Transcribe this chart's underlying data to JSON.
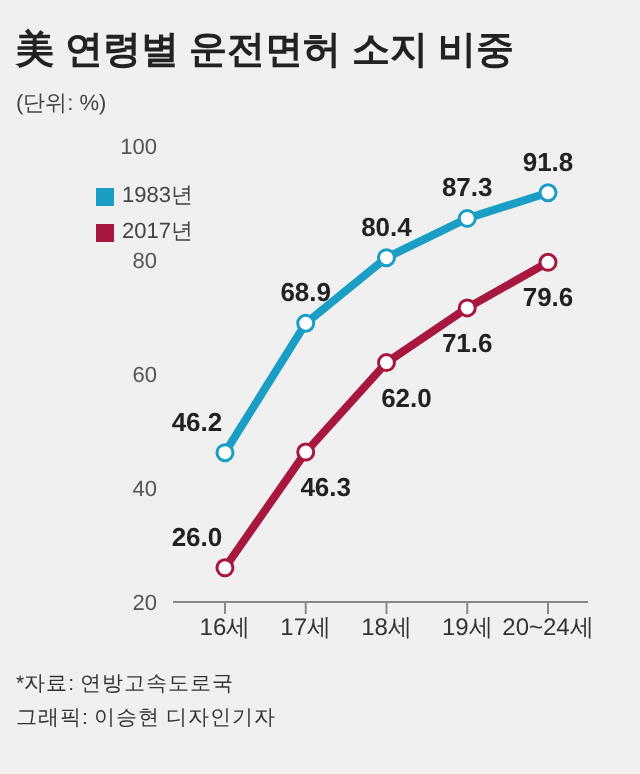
{
  "chart_data": {
    "type": "line",
    "title": "美 연령별 운전면허 소지 비중",
    "subtitle": "(단위: %)",
    "categories": [
      "16세",
      "17세",
      "18세",
      "19세",
      "20~24세"
    ],
    "series": [
      {
        "name": "1983년",
        "color": "#1b9ec6",
        "values": [
          46.2,
          68.9,
          80.4,
          87.3,
          91.8
        ],
        "value_labels": [
          "46.2",
          "68.9",
          "80.4",
          "87.3",
          "91.8"
        ]
      },
      {
        "name": "2017년",
        "color": "#a8183e",
        "values": [
          26.0,
          46.3,
          62.0,
          71.6,
          79.6
        ],
        "value_labels": [
          "26.0",
          "46.3",
          "62.0",
          "71.6",
          "79.6"
        ]
      }
    ],
    "ylim": [
      20,
      100
    ],
    "yticks": [
      20,
      40,
      60,
      80,
      100
    ],
    "marker": "circle",
    "legend": "top left",
    "annotations": [
      "*자료: 연방고속도로국",
      "그래픽: 이승현 디자인기자"
    ]
  }
}
